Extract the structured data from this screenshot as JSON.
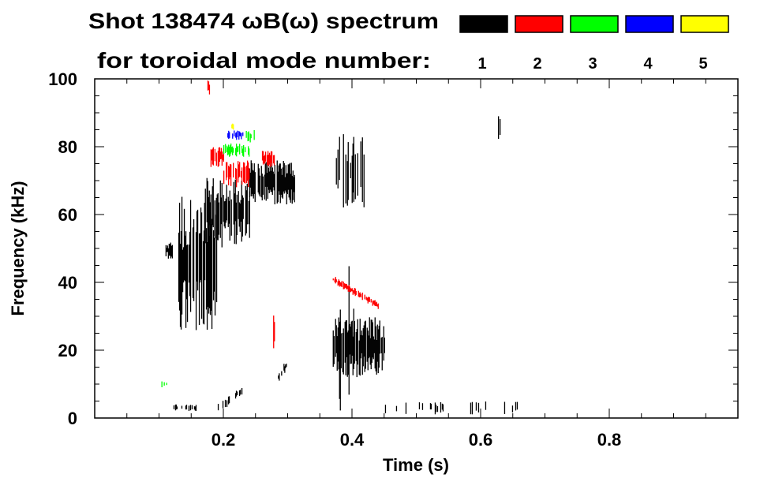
{
  "chart_data": {
    "type": "heatmap",
    "title": "Shot 138474 ωB(ω) spectrum",
    "subtitle": "for toroidal mode number:",
    "xlabel": "Time (s)",
    "ylabel": "Frequency (kHz)",
    "xlim": [
      0.0,
      1.0
    ],
    "ylim": [
      0,
      100
    ],
    "xticks": [
      0.2,
      0.4,
      0.6,
      0.8
    ],
    "xtick_labels": [
      "0.2",
      "0.4",
      "0.6",
      "0.8"
    ],
    "yticks": [
      0,
      20,
      40,
      60,
      80,
      100
    ],
    "ytick_labels": [
      "0",
      "20",
      "40",
      "60",
      "80",
      "100"
    ],
    "legend": [
      {
        "mode": "1",
        "color": "#000000"
      },
      {
        "mode": "2",
        "color": "#ff0000"
      },
      {
        "mode": "3",
        "color": "#00ff00"
      },
      {
        "mode": "4",
        "color": "#0000ff"
      },
      {
        "mode": "5",
        "color": "#ffff00"
      }
    ],
    "features": [
      {
        "mode": 1,
        "t": [
          0.13,
          0.19
        ],
        "f": [
          25,
          66
        ],
        "density": 0.8
      },
      {
        "mode": 1,
        "t": [
          0.17,
          0.24
        ],
        "f": [
          50,
          72
        ],
        "density": 0.7
      },
      {
        "mode": 1,
        "t": [
          0.24,
          0.31
        ],
        "f": [
          63,
          76
        ],
        "density": 0.85
      },
      {
        "mode": 1,
        "t": [
          0.11,
          0.12
        ],
        "f": [
          47,
          52
        ],
        "density": 0.9
      },
      {
        "mode": 1,
        "t": [
          0.375,
          0.42
        ],
        "f": [
          62,
          84
        ],
        "density": 0.6
      },
      {
        "mode": 1,
        "t": [
          0.37,
          0.45
        ],
        "f": [
          12,
          30
        ],
        "density": 0.85
      },
      {
        "mode": 1,
        "t": [
          0.37,
          0.41
        ],
        "f": [
          0,
          45
        ],
        "density": 0.15
      },
      {
        "mode": 1,
        "t": [
          0.12,
          0.16
        ],
        "f": [
          2,
          4
        ],
        "density": 0.4
      },
      {
        "mode": 1,
        "t": [
          0.19,
          0.23
        ],
        "f": [
          1,
          10
        ],
        "density": 0.5,
        "slope": 1
      },
      {
        "mode": 1,
        "t": [
          0.28,
          0.3
        ],
        "f": [
          9,
          18
        ],
        "density": 0.5,
        "slope": 1
      },
      {
        "mode": 1,
        "t": [
          0.45,
          0.67
        ],
        "f": [
          1,
          5
        ],
        "density": 0.15
      },
      {
        "mode": 1,
        "t": [
          0.627,
          0.632
        ],
        "f": [
          80,
          93
        ],
        "density": 0.8
      },
      {
        "mode": 2,
        "t": [
          0.18,
          0.2
        ],
        "f": [
          74,
          80
        ],
        "density": 0.7
      },
      {
        "mode": 2,
        "t": [
          0.2,
          0.24
        ],
        "f": [
          68,
          76
        ],
        "density": 0.7
      },
      {
        "mode": 2,
        "t": [
          0.26,
          0.28
        ],
        "f": [
          74,
          79
        ],
        "density": 0.7
      },
      {
        "mode": 2,
        "t": [
          0.174,
          0.178
        ],
        "f": [
          95,
          100
        ],
        "density": 0.8
      },
      {
        "mode": 2,
        "t": [
          0.37,
          0.44
        ],
        "f": [
          31,
          43
        ],
        "density": 0.9,
        "slope": -1,
        "thin": true
      },
      {
        "mode": 2,
        "t": [
          0.275,
          0.28
        ],
        "f": [
          20,
          31
        ],
        "density": 0.4
      },
      {
        "mode": 3,
        "t": [
          0.2,
          0.24
        ],
        "f": [
          77,
          81
        ],
        "density": 0.7
      },
      {
        "mode": 3,
        "t": [
          0.235,
          0.25
        ],
        "f": [
          81,
          85
        ],
        "density": 0.6
      },
      {
        "mode": 3,
        "t": [
          0.1,
          0.12
        ],
        "f": [
          9,
          11
        ],
        "density": 0.4
      },
      {
        "mode": 4,
        "t": [
          0.205,
          0.23
        ],
        "f": [
          82,
          85
        ],
        "density": 0.6
      },
      {
        "mode": 5,
        "t": [
          0.21,
          0.215
        ],
        "f": [
          85,
          87
        ],
        "density": 0.8
      }
    ]
  }
}
